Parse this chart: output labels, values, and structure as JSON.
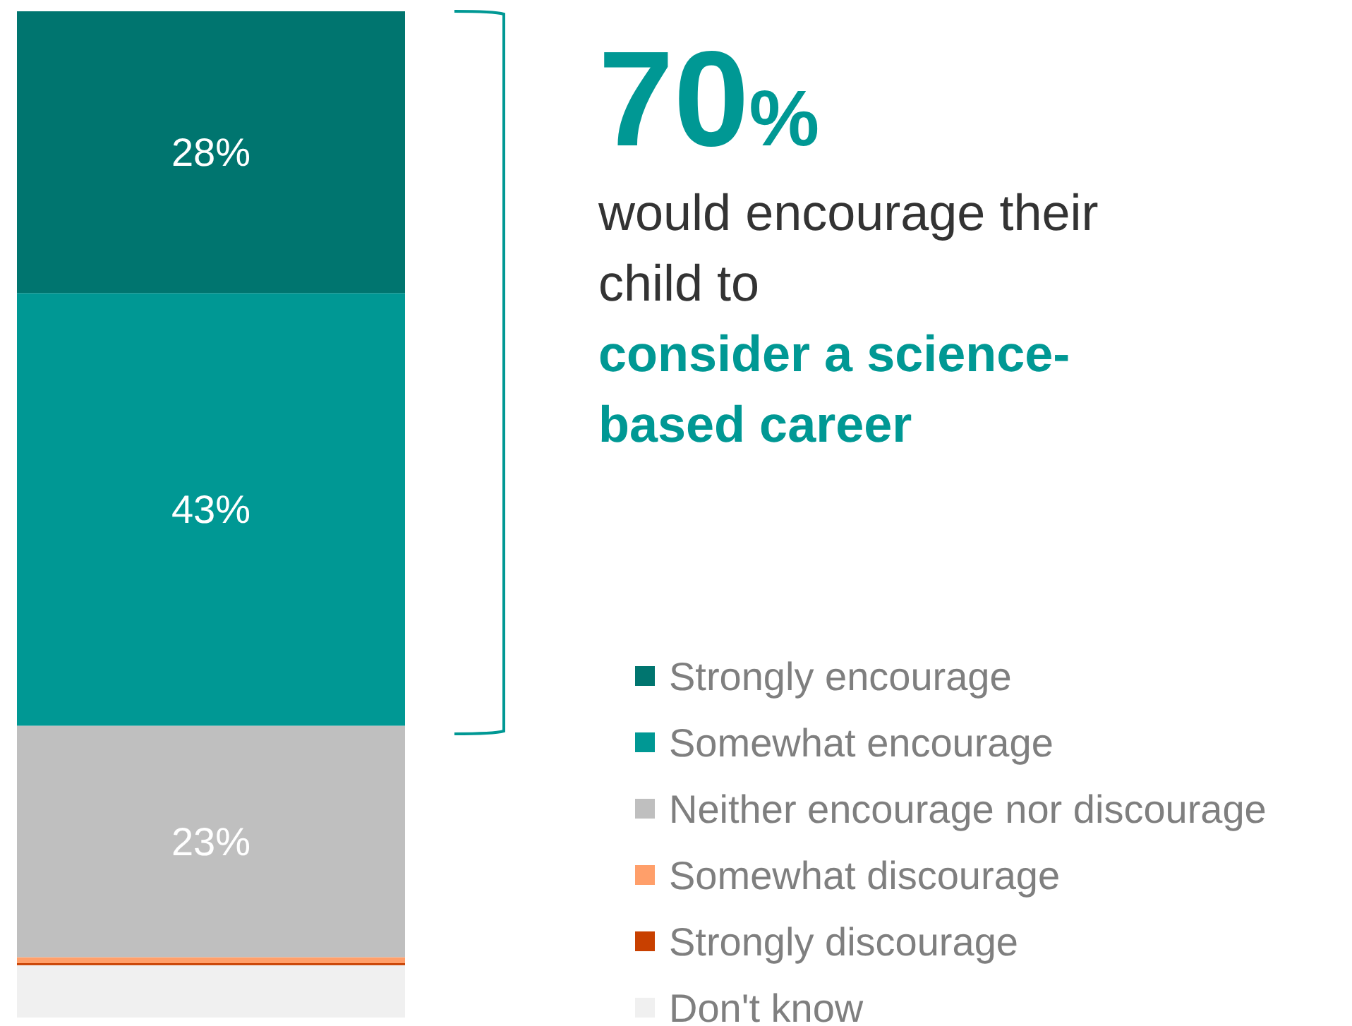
{
  "chart_data": {
    "type": "bar",
    "stacked": true,
    "categories": [
      null
    ],
    "ylim": [
      0,
      100
    ],
    "legend": "right",
    "annotations": [
      "70%",
      "would encourage their child to",
      "consider a science-based career"
    ],
    "series": [
      {
        "name": "Don't know",
        "color": "#f0f0f0",
        "values": [
          5.2
        ],
        "value_labels": [
          null
        ]
      },
      {
        "name": "Strongly discourage",
        "color": "#c84000",
        "values": [
          0.2
        ],
        "value_labels": [
          null
        ]
      },
      {
        "name": "Somewhat discourage",
        "color": "#ff9f6a",
        "values": [
          0.6
        ],
        "value_labels": [
          null
        ]
      },
      {
        "name": "Neither encourage nor discourage",
        "color": "#bfbfbf",
        "values": [
          23
        ],
        "value_labels": [
          "23%"
        ]
      },
      {
        "name": "Somewhat encourage",
        "color": "#009894",
        "values": [
          43
        ],
        "value_labels": [
          "43%"
        ]
      },
      {
        "name": "Strongly encourage",
        "color": "#00756f",
        "values": [
          28
        ],
        "value_labels": [
          "28%"
        ]
      }
    ]
  }
}
